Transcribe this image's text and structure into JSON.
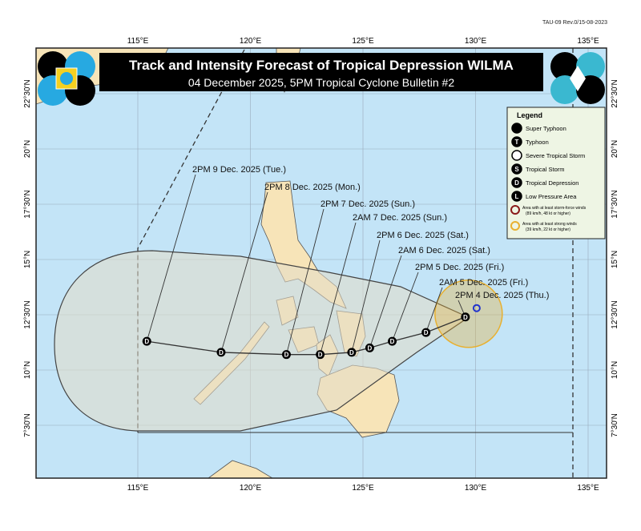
{
  "doc_ref": "TAU-09 Rev.0/15-08-2023",
  "title": "Track and Intensity Forecast of Tropical Depression WILMA",
  "subtitle": "04 December 2025, 5PM Tropical Cyclone Bulletin #2",
  "axes": {
    "lon_labels": [
      "115°E",
      "120°E",
      "125°E",
      "130°E",
      "135°E"
    ],
    "lon_values": [
      115,
      120,
      125,
      130,
      135
    ],
    "lat_labels": [
      "22°30'N",
      "20°N",
      "17°30'N",
      "15°N",
      "12°30'N",
      "10°N",
      "7°30'N"
    ],
    "lat_values": [
      22.5,
      20,
      17.5,
      15,
      12.5,
      10,
      7.5
    ]
  },
  "current_position": {
    "lon": 130.05,
    "lat": 12.8
  },
  "track": [
    {
      "label": "2PM 4 Dec. 2025 (Thu.)",
      "lon": 129.55,
      "lat": 12.4,
      "symbol": "D"
    },
    {
      "label": "2AM 5 Dec. 2025 (Fri.)",
      "lon": 127.8,
      "lat": 11.7,
      "symbol": "D"
    },
    {
      "label": "2PM 5 Dec. 2025 (Fri.)",
      "lon": 126.3,
      "lat": 11.3,
      "symbol": "D"
    },
    {
      "label": "2AM 6 Dec. 2025 (Sat.)",
      "lon": 125.3,
      "lat": 11.0,
      "symbol": "D"
    },
    {
      "label": "2PM 6 Dec. 2025 (Sat.)",
      "lon": 124.5,
      "lat": 10.8,
      "symbol": "D"
    },
    {
      "label": "2AM 7 Dec. 2025 (Sun.)",
      "lon": 123.1,
      "lat": 10.7,
      "symbol": "D"
    },
    {
      "label": "2PM 7 Dec. 2025 (Sun.)",
      "lon": 121.6,
      "lat": 10.7,
      "symbol": "D"
    },
    {
      "label": "2PM 8 Dec. 2025 (Mon.)",
      "lon": 118.7,
      "lat": 10.8,
      "symbol": "D"
    },
    {
      "label": "2PM 9 Dec. 2025 (Tue.)",
      "lon": 115.4,
      "lat": 11.3,
      "symbol": "D"
    }
  ],
  "legend": {
    "title": "Legend",
    "items": [
      {
        "symbol": "super-typhoon",
        "label": "Super Typhoon"
      },
      {
        "symbol": "T",
        "label": "Typhoon"
      },
      {
        "symbol": "severe-tropical-storm",
        "label": "Severe Tropical Storm"
      },
      {
        "symbol": "S",
        "label": "Tropical Storm"
      },
      {
        "symbol": "D",
        "label": "Tropical Depression"
      },
      {
        "symbol": "L",
        "label": "Low Pressure Area"
      }
    ],
    "wind_areas": [
      {
        "color": "#8b1a1a",
        "line1": "Area with at least storm-force winds",
        "line2": "(89 km/h, 48 kt or higher)"
      },
      {
        "color": "#e8b030",
        "line1": "Area with at least strong winds",
        "line2": "(39 km/h, 22 kt or higher)"
      }
    ]
  },
  "colors": {
    "sea": "#c3e4f7",
    "land": "#f7e4b8",
    "cone": "#e3dcc8",
    "strong_wind_area": "#e8b030",
    "banner": "#000000",
    "current_marker": "#2233cc"
  }
}
